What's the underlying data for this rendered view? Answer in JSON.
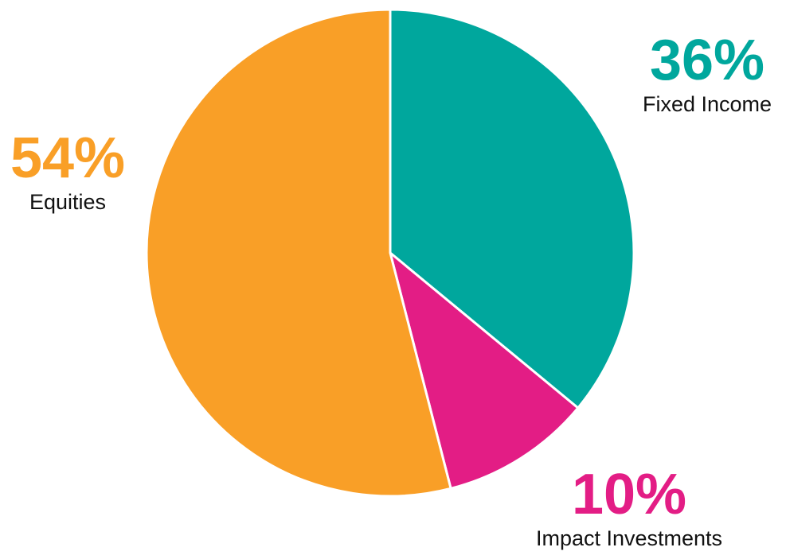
{
  "chart_data": {
    "type": "pie",
    "slices": [
      {
        "label": "Fixed Income",
        "value": 36,
        "value_text": "36%",
        "color": "#00A79D"
      },
      {
        "label": "Impact Investments",
        "value": 10,
        "value_text": "10%",
        "color": "#E31D85"
      },
      {
        "label": "Equities",
        "value": 54,
        "value_text": "54%",
        "color": "#F99F27"
      }
    ],
    "start": "12 o'clock",
    "direction": "clockwise",
    "slice_border_color": "#ffffff"
  }
}
